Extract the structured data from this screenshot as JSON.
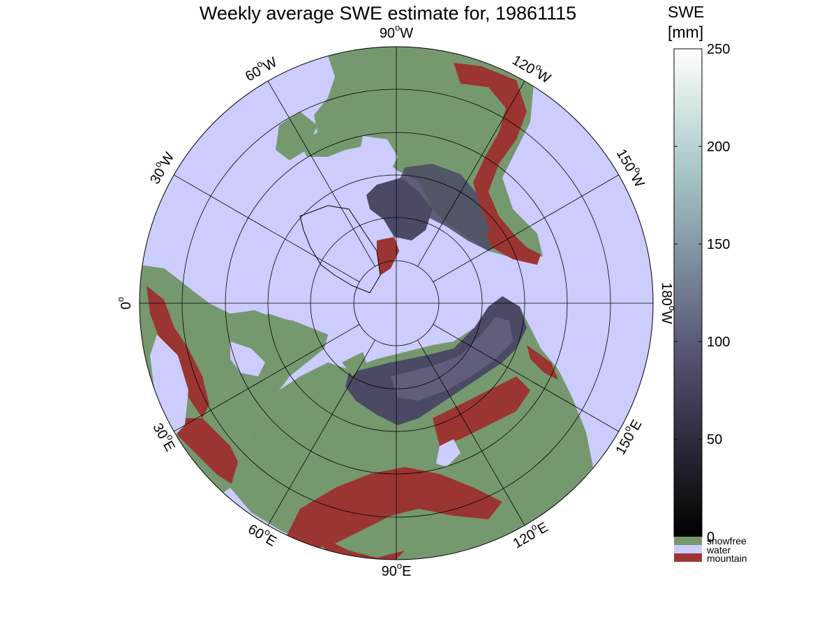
{
  "title": "Weekly average SWE estimate for, 19861115",
  "colorbar": {
    "label_line1": "SWE",
    "label_line2": "[mm]",
    "ticks": [
      0,
      50,
      100,
      150,
      200,
      250
    ],
    "tick_labels": [
      "0",
      "50",
      "100",
      "150",
      "200",
      "250"
    ],
    "range": [
      0,
      250
    ],
    "colormap": "bone",
    "categories": [
      {
        "label": "snowfree",
        "color": "#76986F"
      },
      {
        "label": "water",
        "color": "#CCCCFF"
      },
      {
        "label": "mountain",
        "color": "#9B3532"
      }
    ]
  },
  "map": {
    "projection": "north polar stereographic",
    "longitude_labels": [
      "0",
      "30",
      "60",
      "90",
      "120",
      "150",
      "180",
      "150",
      "120",
      "90",
      "60",
      "30"
    ],
    "longitude_suffixes": [
      "",
      "E",
      "E",
      "E",
      "E",
      "E",
      "W",
      "W",
      "W",
      "W",
      "W",
      "W"
    ],
    "colors": {
      "ocean": "#CCCCFF",
      "snowfree": "#76986F",
      "mountain": "#9B3532",
      "snow": "#4A4A64",
      "deep_snow": "#5F5F7C",
      "grid": "#000000"
    }
  }
}
